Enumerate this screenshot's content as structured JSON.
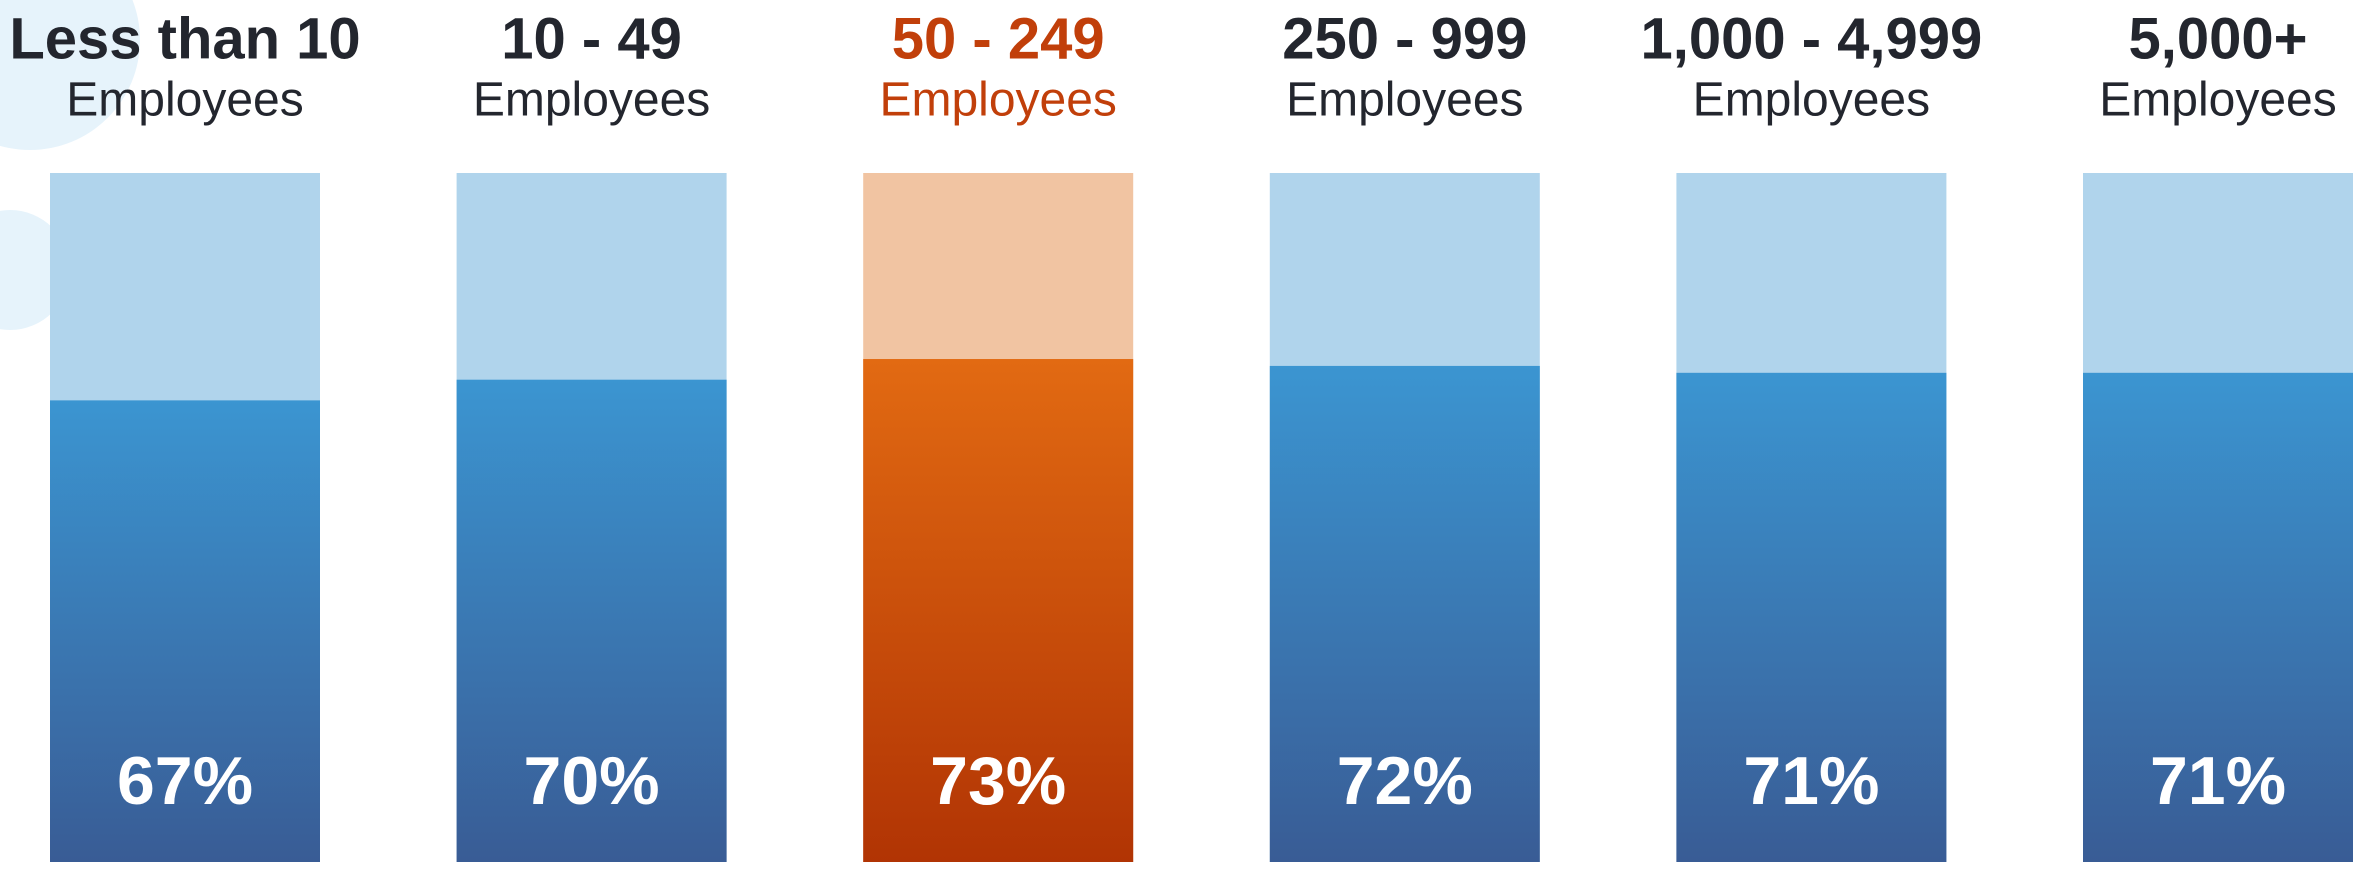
{
  "chart_data": {
    "type": "bar",
    "categories": [
      "Less than 10",
      "10 - 49",
      "50 - 249",
      "250 - 999",
      "1,000 - 4,999",
      "5,000+"
    ],
    "category_sublabels": [
      "Employees",
      "Employees",
      "Employees",
      "Employees",
      "Employees",
      "Employees"
    ],
    "values": [
      67,
      70,
      73,
      72,
      71,
      71
    ],
    "value_labels": [
      "67%",
      "70%",
      "73%",
      "72%",
      "71%",
      "71%"
    ],
    "ylim": [
      0,
      100
    ],
    "bar_gradients": [
      [
        "#3b95d1",
        "#395c95"
      ],
      [
        "#3b95d1",
        "#395c95"
      ],
      [
        "#e26a12",
        "#b13404"
      ],
      [
        "#3b95d1",
        "#395c95"
      ],
      [
        "#3b95d1",
        "#395c95"
      ],
      [
        "#3b95d1",
        "#395c95"
      ]
    ],
    "bar_background_colors": [
      "#b0d4ec",
      "#b0d4ec",
      "#f1c4a2",
      "#b0d4ec",
      "#b0d4ec",
      "#b0d4ec"
    ],
    "category_colors": [
      "#23262e",
      "#23262e",
      "#c13f0a",
      "#23262e",
      "#23262e",
      "#23262e"
    ]
  }
}
